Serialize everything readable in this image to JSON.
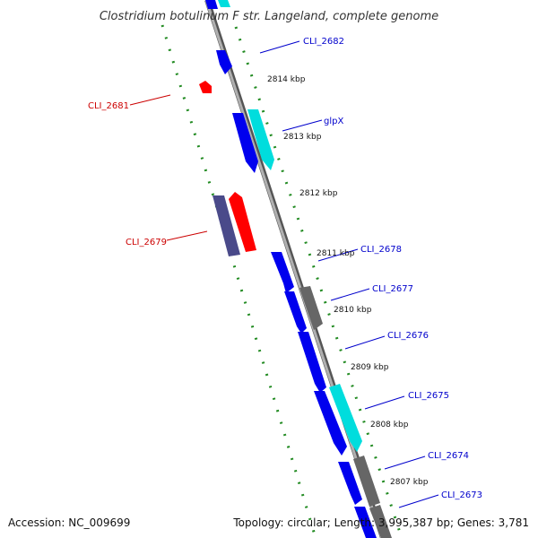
{
  "title": "Clostridium botulinum F str. Langeland, complete genome",
  "footer": {
    "accession": "Accession: NC_009699",
    "summary": "Topology: circular; Length: 3,995,387 bp; Genes: 3,781"
  },
  "colors": {
    "plus_cds": "#0000ee",
    "minus_cds": "#ff0000",
    "cyan_feature": "#00dddd",
    "gray_feature": "#666666",
    "slate_feature": "#4a4a8a",
    "backbone": "#8c8c8c",
    "gc_dash": "#228b22",
    "plus_label": "#0000cc",
    "minus_label": "#cc0000"
  },
  "kbp_ticks": [
    "2814 kbp",
    "2813 kbp",
    "2812 kbp",
    "2811 kbp",
    "2810 kbp",
    "2809 kbp",
    "2808 kbp",
    "2807 kbp"
  ],
  "gene_labels": {
    "cli_2682": "CLI_2682",
    "cli_2681": "CLI_2681",
    "glpx": "glpX",
    "cli_2679": "CLI_2679",
    "cli_2678": "CLI_2678",
    "cli_2677": "CLI_2677",
    "cli_2676": "CLI_2676",
    "cli_2675": "CLI_2675",
    "cli_2674": "CLI_2674",
    "cli_2673": "CLI_2673"
  }
}
